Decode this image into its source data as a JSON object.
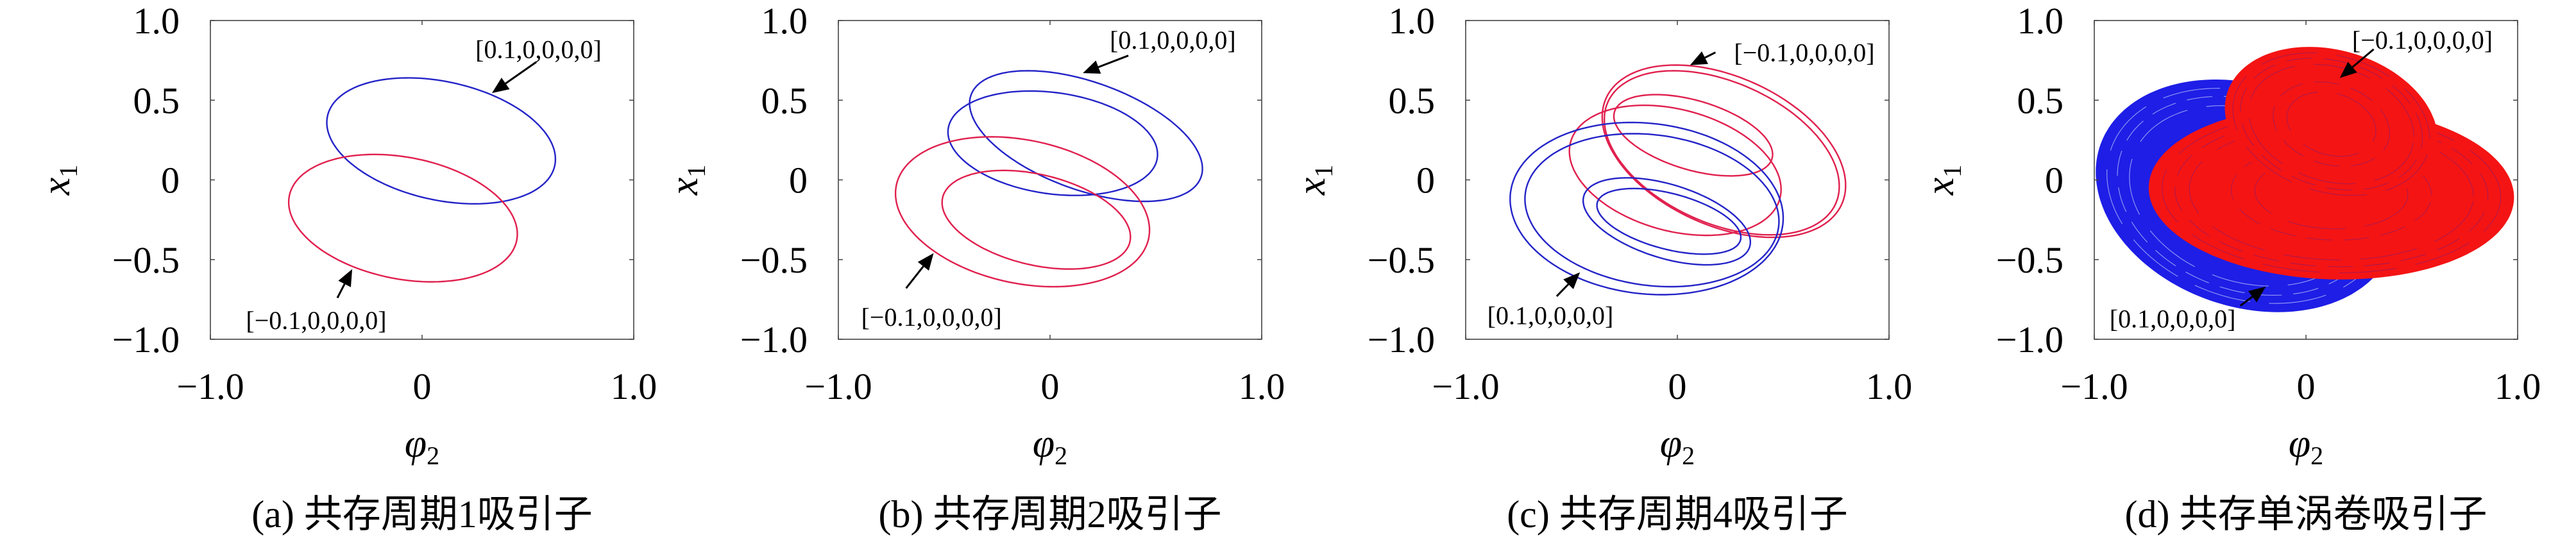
{
  "chart_data": [
    {
      "type": "line",
      "caption": "(a) 共存周期1吸引子",
      "xlabel": {
        "symbol": "φ",
        "subscript": "2"
      },
      "ylabel": {
        "symbol": "x",
        "subscript": "1"
      },
      "xlim": [
        -1,
        1
      ],
      "ylim": [
        -1,
        1
      ],
      "xticks": [
        {
          "v": -1,
          "label": "−1.0"
        },
        {
          "v": 0,
          "label": "0"
        },
        {
          "v": 1,
          "label": "1.0"
        }
      ],
      "yticks": [
        {
          "v": 1,
          "label": "1.0"
        },
        {
          "v": 0.5,
          "label": "0.5"
        },
        {
          "v": 0,
          "label": "0"
        },
        {
          "v": -0.5,
          "label": "−0.5"
        },
        {
          "v": -1,
          "label": "−1.0"
        }
      ],
      "grid": false,
      "style": "line",
      "series": [
        {
          "name": "[0.1,0,0,0,0]",
          "color": "#2424c8",
          "curves": [
            {
              "center": [
                0.09,
                0.245
              ],
              "ax": 0.54,
              "ay": 0.378,
              "skew": 0.115
            }
          ]
        },
        {
          "name": "[−0.1,0,0,0,0]",
          "color": "#e0204e",
          "curves": [
            {
              "center": [
                -0.09,
                -0.24
              ],
              "ax": 0.54,
              "ay": 0.387,
              "skew": 0.1
            }
          ]
        }
      ],
      "annotations": [
        {
          "text": "[0.1,0,0,0,0]",
          "text_at": [
            0.55,
            0.82
          ],
          "arrow_from": [
            0.54,
            0.74
          ],
          "arrow_to": [
            0.33,
            0.545
          ]
        },
        {
          "text": "[−0.1,0,0,0,0]",
          "text_at": [
            -0.5,
            -0.88
          ],
          "arrow_from": [
            -0.4,
            -0.74
          ],
          "arrow_to": [
            -0.33,
            -0.56
          ]
        }
      ]
    },
    {
      "type": "line",
      "caption": "(b) 共存周期2吸引子",
      "xlabel": {
        "symbol": "φ",
        "subscript": "2"
      },
      "ylabel": {
        "symbol": "x",
        "subscript": "1"
      },
      "xlim": [
        -1,
        1
      ],
      "ylim": [
        -1,
        1
      ],
      "xticks": [
        {
          "v": -1,
          "label": "−1.0"
        },
        {
          "v": 0,
          "label": "0"
        },
        {
          "v": 1,
          "label": "1.0"
        }
      ],
      "yticks": [
        {
          "v": 1,
          "label": "1.0"
        },
        {
          "v": 0.5,
          "label": "0.5"
        },
        {
          "v": 0,
          "label": "0"
        },
        {
          "v": -0.5,
          "label": "−0.5"
        },
        {
          "v": -1,
          "label": "−1.0"
        }
      ],
      "grid": false,
      "style": "line",
      "series": [
        {
          "name": "[0.1,0,0,0,0]",
          "color": "#2424c8",
          "curves": [
            {
              "center": [
                0.17,
                0.275
              ],
              "ax": 0.55,
              "ay": 0.355,
              "skew": 0.205
            },
            {
              "center": [
                0.013,
                0.23
              ],
              "ax": 0.495,
              "ay": 0.32,
              "skew": 0.07
            }
          ]
        },
        {
          "name": "[−0.1,0,0,0,0]",
          "color": "#e0204e",
          "curves": [
            {
              "center": [
                -0.13,
                -0.2
              ],
              "ax": 0.6,
              "ay": 0.456,
              "skew": 0.115
            },
            {
              "center": [
                -0.065,
                -0.25
              ],
              "ax": 0.445,
              "ay": 0.29,
              "skew": 0.108
            }
          ]
        }
      ],
      "annotations": [
        {
          "text": "[0.1,0,0,0,0]",
          "text_at": [
            0.58,
            0.88
          ],
          "arrow_from": [
            0.37,
            0.78
          ],
          "arrow_to": [
            0.155,
            0.67
          ]
        },
        {
          "text": "[−0.1,0,0,0,0]",
          "text_at": [
            -0.56,
            -0.86
          ],
          "arrow_from": [
            -0.68,
            -0.68
          ],
          "arrow_to": [
            -0.55,
            -0.46
          ]
        }
      ]
    },
    {
      "type": "line",
      "caption": "(c) 共存周期4吸引子",
      "xlabel": {
        "symbol": "φ",
        "subscript": "2"
      },
      "ylabel": {
        "symbol": "x",
        "subscript": "1"
      },
      "xlim": [
        -1,
        1
      ],
      "ylim": [
        -1,
        1
      ],
      "xticks": [
        {
          "v": -1,
          "label": "−1.0"
        },
        {
          "v": 0,
          "label": "0"
        },
        {
          "v": 1,
          "label": "1.0"
        }
      ],
      "yticks": [
        {
          "v": 1,
          "label": "1.0"
        },
        {
          "v": 0.5,
          "label": "0.5"
        },
        {
          "v": 0,
          "label": "0"
        },
        {
          "v": -0.5,
          "label": "−0.5"
        },
        {
          "v": -1,
          "label": "−1.0"
        }
      ],
      "grid": false,
      "style": "line",
      "series": [
        {
          "name": "[−0.1,0,0,0,0]",
          "color": "#e0204e",
          "curves": [
            {
              "center": [
                0.22,
                0.18
              ],
              "ax": 0.575,
              "ay": 0.496,
              "skew": 0.215
            },
            {
              "center": [
                0.21,
                0.17
              ],
              "ax": 0.555,
              "ay": 0.47,
              "skew": 0.21
            },
            {
              "center": [
                0.075,
                0.28
              ],
              "ax": 0.375,
              "ay": 0.225,
              "skew": 0.12
            },
            {
              "center": [
                -0.01,
                0.06
              ],
              "ax": 0.5,
              "ay": 0.39,
              "skew": 0.12
            }
          ]
        },
        {
          "name": "[0.1,0,0,0,0]",
          "color": "#2424c8",
          "curves": [
            {
              "center": [
                -0.145,
                -0.18
              ],
              "ax": 0.645,
              "ay": 0.537,
              "skew": 0.06
            },
            {
              "center": [
                -0.12,
                -0.19
              ],
              "ax": 0.6,
              "ay": 0.475,
              "skew": 0.07
            },
            {
              "center": [
                -0.05,
                -0.26
              ],
              "ax": 0.395,
              "ay": 0.24,
              "skew": 0.13
            },
            {
              "center": [
                -0.04,
                -0.26
              ],
              "ax": 0.34,
              "ay": 0.18,
              "skew": 0.1
            }
          ]
        }
      ],
      "annotations": [
        {
          "text": "[−0.1,0,0,0,0]",
          "text_at": [
            0.6,
            0.8
          ],
          "arrow_from": [
            0.18,
            0.8
          ],
          "arrow_to": [
            0.06,
            0.72
          ]
        },
        {
          "text": "[0.1,0,0,0,0]",
          "text_at": [
            -0.6,
            -0.85
          ],
          "arrow_from": [
            -0.57,
            -0.73
          ],
          "arrow_to": [
            -0.46,
            -0.58
          ]
        }
      ]
    },
    {
      "type": "area",
      "caption": "(d) 共存单涡卷吸引子",
      "xlabel": {
        "symbol": "φ",
        "subscript": "2"
      },
      "ylabel": {
        "symbol": "x",
        "subscript": "1"
      },
      "xlim": [
        -1,
        1
      ],
      "ylim": [
        -1,
        1
      ],
      "xticks": [
        {
          "v": -1,
          "label": "−1.0"
        },
        {
          "v": 0,
          "label": "0"
        },
        {
          "v": 1,
          "label": "1.0"
        }
      ],
      "yticks": [
        {
          "v": 1,
          "label": "1.0"
        },
        {
          "v": 0.5,
          "label": "0.5"
        },
        {
          "v": 0,
          "label": "0"
        },
        {
          "v": -0.5,
          "label": "−0.5"
        },
        {
          "v": -1,
          "label": "−1.0"
        }
      ],
      "grid": false,
      "style": "filled",
      "series": [
        {
          "name": "[0.1,0,0,0,0]",
          "color": "#1e1ee6",
          "curves": [
            {
              "center": [
                -0.28,
                -0.1
              ],
              "ax": 0.71,
              "ay": 0.71,
              "skew": 0.15
            }
          ]
        },
        {
          "name": "[−0.1,0,0,0,0]",
          "color": "#f41414",
          "curves": [
            {
              "center": [
                0.12,
                -0.08
              ],
              "ax": 0.86,
              "ay": 0.54,
              "skew": 0.03
            },
            {
              "center": [
                0.12,
                0.35
              ],
              "ax": 0.5,
              "ay": 0.47,
              "skew": 0.1
            }
          ]
        }
      ],
      "annotations": [
        {
          "text": "[−0.1,0,0,0,0]",
          "text_at": [
            0.55,
            0.88
          ],
          "arrow_from": [
            0.32,
            0.82
          ],
          "arrow_to": [
            0.16,
            0.64
          ]
        },
        {
          "text": "[0.1,0,0,0,0]",
          "text_at": [
            -0.63,
            -0.87
          ],
          "arrow_from": [
            -0.31,
            -0.79
          ],
          "arrow_to": [
            -0.19,
            -0.67
          ]
        }
      ]
    }
  ]
}
